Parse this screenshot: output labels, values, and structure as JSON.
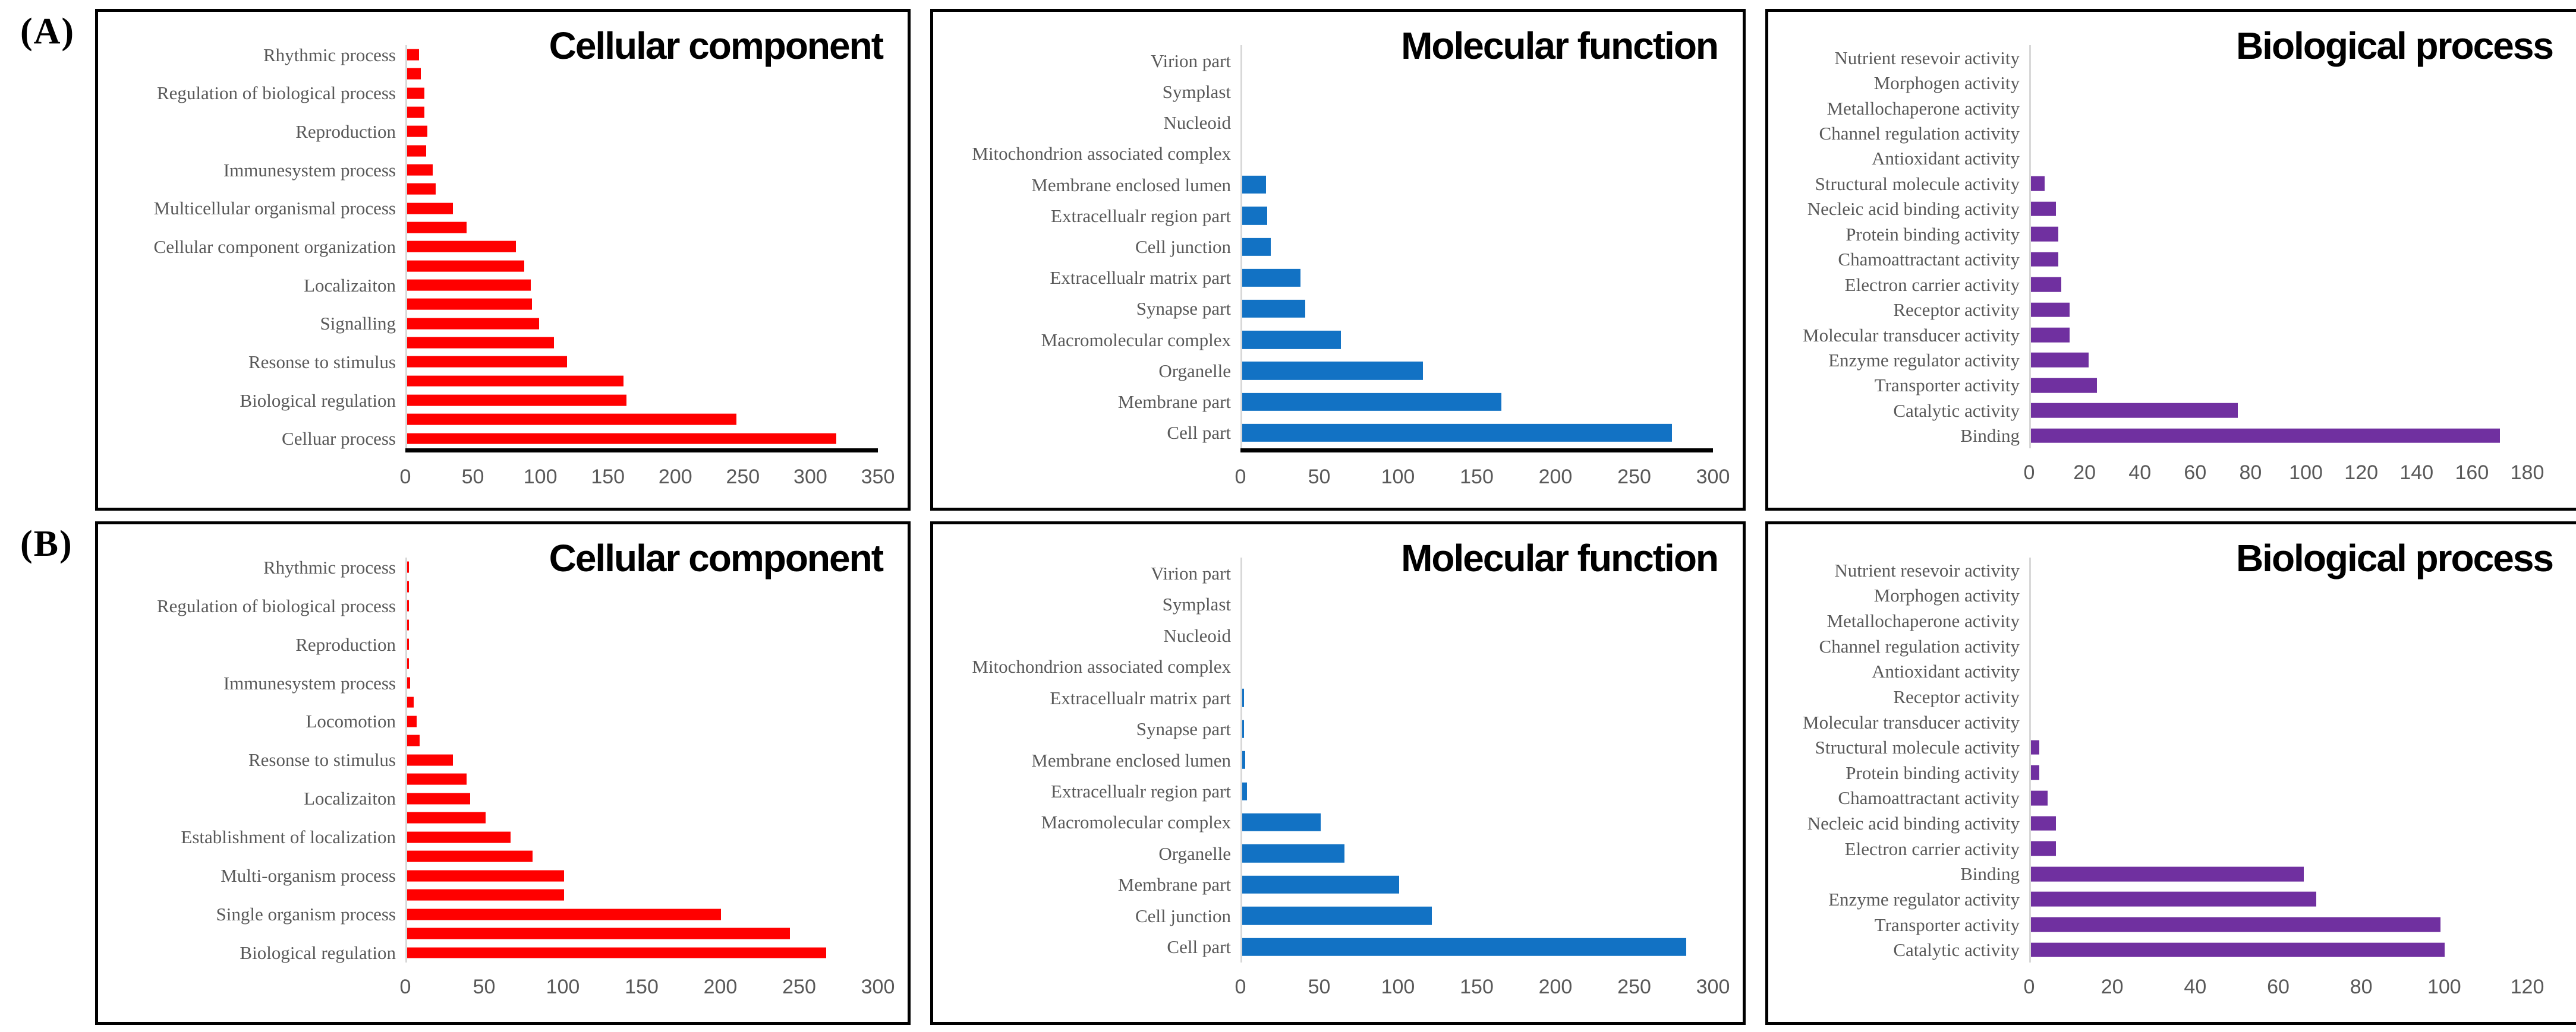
{
  "figure": {
    "panel_a_label": "(A)",
    "panel_b_label": "(B)"
  },
  "chart_data": [
    {
      "panel": "A",
      "type": "bar",
      "title": "Cellular component",
      "bar_color": "#ff0000",
      "xlim": [
        0,
        350
      ],
      "x_ticks": [
        0,
        50,
        100,
        150,
        200,
        250,
        300,
        350
      ],
      "baseline": true,
      "legend": false,
      "rows": [
        {
          "label": "Rhythmic process",
          "value": 9
        },
        {
          "label": "",
          "value": 10
        },
        {
          "label": "Regulation of biological process",
          "value": 13
        },
        {
          "label": "",
          "value": 13
        },
        {
          "label": "Reproduction",
          "value": 15
        },
        {
          "label": "",
          "value": 14
        },
        {
          "label": "Immunesystem process",
          "value": 19
        },
        {
          "label": "",
          "value": 21
        },
        {
          "label": "Multicellular organismal process",
          "value": 34
        },
        {
          "label": "",
          "value": 44
        },
        {
          "label": "Cellular component organization",
          "value": 81
        },
        {
          "label": "",
          "value": 87
        },
        {
          "label": "Localizaiton",
          "value": 92
        },
        {
          "label": "",
          "value": 93
        },
        {
          "label": "Signalling",
          "value": 98
        },
        {
          "label": "",
          "value": 109
        },
        {
          "label": "Resonse to stimulus",
          "value": 119
        },
        {
          "label": "",
          "value": 161
        },
        {
          "label": "Biological regulation",
          "value": 163
        },
        {
          "label": "",
          "value": 245
        },
        {
          "label": "Celluar process",
          "value": 319
        }
      ]
    },
    {
      "panel": "A",
      "type": "bar",
      "title": "Molecular function",
      "bar_color": "#1272c4",
      "xlim": [
        0,
        300
      ],
      "x_ticks": [
        0,
        50,
        100,
        150,
        200,
        250,
        300
      ],
      "baseline": true,
      "legend": false,
      "rows": [
        {
          "label": "Virion part",
          "value": 0
        },
        {
          "label": "Symplast",
          "value": 0
        },
        {
          "label": "Nucleoid",
          "value": 0
        },
        {
          "label": "Mitochondrion associated complex",
          "value": 0
        },
        {
          "label": "Membrane enclosed lumen",
          "value": 15
        },
        {
          "label": "Extracellualr region part",
          "value": 16
        },
        {
          "label": "Cell junction",
          "value": 18
        },
        {
          "label": "Extracellualr matrix part",
          "value": 37
        },
        {
          "label": "Synapse part",
          "value": 40
        },
        {
          "label": "Macromolecular complex",
          "value": 63
        },
        {
          "label": "Organelle",
          "value": 115
        },
        {
          "label": "Membrane part",
          "value": 165
        },
        {
          "label": "Cell part",
          "value": 274
        }
      ]
    },
    {
      "panel": "A",
      "type": "bar",
      "title": "Biological process",
      "bar_color": "#7030a0",
      "xlim": [
        0,
        180
      ],
      "x_ticks": [
        0,
        20,
        40,
        60,
        80,
        100,
        120,
        140,
        160,
        180
      ],
      "baseline": false,
      "legend": false,
      "rows": [
        {
          "label": "Nutrient resevoir activity",
          "value": 0
        },
        {
          "label": "Morphogen activity",
          "value": 0
        },
        {
          "label": "Metallochaperone activity",
          "value": 0
        },
        {
          "label": "Channel regulation activity",
          "value": 0
        },
        {
          "label": "Antioxidant activity",
          "value": 0
        },
        {
          "label": "Structural molecule activity",
          "value": 5
        },
        {
          "label": "Necleic acid binding activity",
          "value": 9
        },
        {
          "label": "Protein binding activity",
          "value": 10
        },
        {
          "label": "Chamoattractant activity",
          "value": 10
        },
        {
          "label": "Electron carrier activity",
          "value": 11
        },
        {
          "label": "Receptor activity",
          "value": 14
        },
        {
          "label": "Molecular transducer activity",
          "value": 14
        },
        {
          "label": "Enzyme regulator activity",
          "value": 21
        },
        {
          "label": "Transporter activity",
          "value": 24
        },
        {
          "label": "Catalytic activity",
          "value": 75
        },
        {
          "label": "Binding",
          "value": 170
        }
      ]
    },
    {
      "panel": "B",
      "type": "bar",
      "title": "Cellular component",
      "bar_color": "#ff0000",
      "xlim": [
        0,
        300
      ],
      "x_ticks": [
        0,
        50,
        100,
        150,
        200,
        250,
        300
      ],
      "baseline": false,
      "legend": false,
      "rows": [
        {
          "label": "Rhythmic process",
          "value": 1
        },
        {
          "label": "",
          "value": 1
        },
        {
          "label": "Regulation of biological process",
          "value": 1
        },
        {
          "label": "",
          "value": 1
        },
        {
          "label": "Reproduction",
          "value": 1
        },
        {
          "label": "",
          "value": 1
        },
        {
          "label": "Immunesystem process",
          "value": 2
        },
        {
          "label": "",
          "value": 4
        },
        {
          "label": "Locomotion",
          "value": 6
        },
        {
          "label": "",
          "value": 8
        },
        {
          "label": "Resonse to stimulus",
          "value": 29
        },
        {
          "label": "",
          "value": 38
        },
        {
          "label": "Localizaiton",
          "value": 40
        },
        {
          "label": "",
          "value": 50
        },
        {
          "label": "Establishment of localization",
          "value": 66
        },
        {
          "label": "",
          "value": 80
        },
        {
          "label": "Multi-organism process",
          "value": 100
        },
        {
          "label": "",
          "value": 100
        },
        {
          "label": "Single organism process",
          "value": 200
        },
        {
          "label": "",
          "value": 244
        },
        {
          "label": "Biological regulation",
          "value": 267
        }
      ]
    },
    {
      "panel": "B",
      "type": "bar",
      "title": "Molecular function",
      "bar_color": "#1272c4",
      "xlim": [
        0,
        300
      ],
      "x_ticks": [
        0,
        50,
        100,
        150,
        200,
        250,
        300
      ],
      "baseline": false,
      "legend": false,
      "rows": [
        {
          "label": "Virion part",
          "value": 0
        },
        {
          "label": "Symplast",
          "value": 0
        },
        {
          "label": "Nucleoid",
          "value": 0
        },
        {
          "label": "Mitochondrion associated complex",
          "value": 0
        },
        {
          "label": "Extracellualr matrix part",
          "value": 1
        },
        {
          "label": "Synapse part",
          "value": 1
        },
        {
          "label": "Membrane enclosed lumen",
          "value": 2
        },
        {
          "label": "Extracellualr region part",
          "value": 3
        },
        {
          "label": "Macromolecular complex",
          "value": 50
        },
        {
          "label": "Organelle",
          "value": 65
        },
        {
          "label": "Membrane part",
          "value": 100
        },
        {
          "label": "Cell junction",
          "value": 121
        },
        {
          "label": "Cell part",
          "value": 283
        }
      ]
    },
    {
      "panel": "B",
      "type": "bar",
      "title": "Biological process",
      "bar_color": "#7030a0",
      "xlim": [
        0,
        120
      ],
      "x_ticks": [
        0,
        20,
        40,
        60,
        80,
        100,
        120
      ],
      "baseline": false,
      "legend": false,
      "rows": [
        {
          "label": "Nutrient resevoir activity",
          "value": 0
        },
        {
          "label": "Morphogen activity",
          "value": 0
        },
        {
          "label": "Metallochaperone activity",
          "value": 0
        },
        {
          "label": "Channel regulation activity",
          "value": 0
        },
        {
          "label": "Antioxidant activity",
          "value": 0
        },
        {
          "label": "Receptor activity",
          "value": 0
        },
        {
          "label": "Molecular transducer activity",
          "value": 0
        },
        {
          "label": "Structural molecule activity",
          "value": 2
        },
        {
          "label": "Protein binding activity",
          "value": 2
        },
        {
          "label": "Chamoattractant activity",
          "value": 4
        },
        {
          "label": "Necleic acid binding activity",
          "value": 6
        },
        {
          "label": "Electron carrier activity",
          "value": 6
        },
        {
          "label": "Binding",
          "value": 66
        },
        {
          "label": "Enzyme regulator activity",
          "value": 69
        },
        {
          "label": "Transporter activity",
          "value": 99
        },
        {
          "label": "Catalytic activity",
          "value": 100
        }
      ]
    }
  ]
}
